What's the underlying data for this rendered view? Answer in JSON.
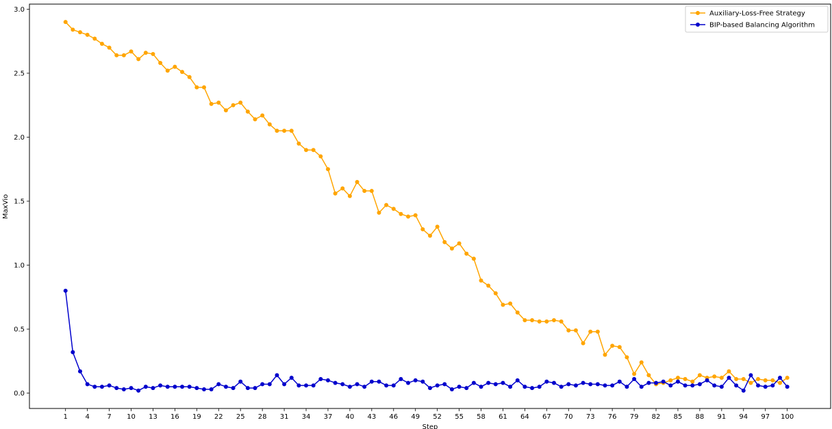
{
  "chart_data": {
    "type": "line",
    "title": "",
    "xlabel": "Step",
    "ylabel": "MaxVio",
    "xlim": [
      -3.95,
      105.95
    ],
    "ylim": [
      -0.12,
      3.04
    ],
    "x": [
      1,
      2,
      3,
      4,
      5,
      6,
      7,
      8,
      9,
      10,
      11,
      12,
      13,
      14,
      15,
      16,
      17,
      18,
      19,
      20,
      21,
      22,
      23,
      24,
      25,
      26,
      27,
      28,
      29,
      30,
      31,
      32,
      33,
      34,
      35,
      36,
      37,
      38,
      39,
      40,
      41,
      42,
      43,
      44,
      45,
      46,
      47,
      48,
      49,
      50,
      51,
      52,
      53,
      54,
      55,
      56,
      57,
      58,
      59,
      60,
      61,
      62,
      63,
      64,
      65,
      66,
      67,
      68,
      69,
      70,
      71,
      72,
      73,
      74,
      75,
      76,
      77,
      78,
      79,
      80,
      81,
      82,
      83,
      84,
      85,
      86,
      87,
      88,
      89,
      90,
      91,
      92,
      93,
      94,
      95,
      96,
      97,
      98,
      99,
      100
    ],
    "x_ticks": [
      "1",
      "4",
      "7",
      "10",
      "13",
      "16",
      "19",
      "22",
      "25",
      "28",
      "31",
      "34",
      "37",
      "40",
      "43",
      "46",
      "49",
      "52",
      "55",
      "58",
      "61",
      "64",
      "67",
      "70",
      "73",
      "76",
      "79",
      "82",
      "85",
      "88",
      "91",
      "94",
      "97",
      "100"
    ],
    "x_tick_values": [
      1,
      4,
      7,
      10,
      13,
      16,
      19,
      22,
      25,
      28,
      31,
      34,
      37,
      40,
      43,
      46,
      49,
      52,
      55,
      58,
      61,
      64,
      67,
      70,
      73,
      76,
      79,
      82,
      85,
      88,
      91,
      94,
      97,
      100
    ],
    "y_ticks": [
      "0.0",
      "0.5",
      "1.0",
      "1.5",
      "2.0",
      "2.5",
      "3.0"
    ],
    "y_tick_values": [
      0,
      0.5,
      1.0,
      1.5,
      2.0,
      2.5,
      3.0
    ],
    "grid": false,
    "legend_position": "top-right",
    "series": [
      {
        "name": "Auxiliary-Loss-Free Strategy",
        "color": "#ffa500",
        "values": [
          2.9,
          2.84,
          2.82,
          2.8,
          2.77,
          2.73,
          2.7,
          2.64,
          2.64,
          2.67,
          2.61,
          2.66,
          2.65,
          2.58,
          2.52,
          2.55,
          2.51,
          2.47,
          2.39,
          2.39,
          2.26,
          2.27,
          2.21,
          2.25,
          2.27,
          2.2,
          2.14,
          2.17,
          2.1,
          2.05,
          2.05,
          2.05,
          1.95,
          1.9,
          1.9,
          1.85,
          1.75,
          1.56,
          1.6,
          1.54,
          1.65,
          1.58,
          1.58,
          1.41,
          1.47,
          1.44,
          1.4,
          1.38,
          1.39,
          1.28,
          1.23,
          1.3,
          1.18,
          1.13,
          1.17,
          1.09,
          1.05,
          0.88,
          0.84,
          0.78,
          0.69,
          0.7,
          0.63,
          0.57,
          0.57,
          0.56,
          0.56,
          0.57,
          0.56,
          0.49,
          0.49,
          0.39,
          0.48,
          0.48,
          0.3,
          0.37,
          0.36,
          0.28,
          0.15,
          0.24,
          0.14,
          0.07,
          0.08,
          0.1,
          0.12,
          0.11,
          0.09,
          0.14,
          0.12,
          0.13,
          0.12,
          0.17,
          0.11,
          0.11,
          0.08,
          0.11,
          0.1,
          0.1,
          0.08,
          0.12
        ]
      },
      {
        "name": "BIP-based Balancing Algorithm",
        "color": "#0000cc",
        "values": [
          0.8,
          0.32,
          0.17,
          0.07,
          0.05,
          0.05,
          0.06,
          0.04,
          0.03,
          0.04,
          0.02,
          0.05,
          0.04,
          0.06,
          0.05,
          0.05,
          0.05,
          0.05,
          0.04,
          0.03,
          0.03,
          0.07,
          0.05,
          0.04,
          0.09,
          0.04,
          0.04,
          0.07,
          0.07,
          0.14,
          0.07,
          0.12,
          0.06,
          0.06,
          0.06,
          0.11,
          0.1,
          0.08,
          0.07,
          0.05,
          0.07,
          0.05,
          0.09,
          0.09,
          0.06,
          0.06,
          0.11,
          0.08,
          0.1,
          0.09,
          0.04,
          0.06,
          0.07,
          0.03,
          0.05,
          0.04,
          0.08,
          0.05,
          0.08,
          0.07,
          0.08,
          0.05,
          0.1,
          0.05,
          0.04,
          0.05,
          0.09,
          0.08,
          0.05,
          0.07,
          0.06,
          0.08,
          0.07,
          0.07,
          0.06,
          0.06,
          0.09,
          0.05,
          0.11,
          0.05,
          0.08,
          0.08,
          0.09,
          0.06,
          0.09,
          0.06,
          0.06,
          0.07,
          0.1,
          0.06,
          0.05,
          0.12,
          0.06,
          0.02,
          0.14,
          0.06,
          0.05,
          0.06,
          0.12,
          0.05
        ]
      }
    ]
  }
}
